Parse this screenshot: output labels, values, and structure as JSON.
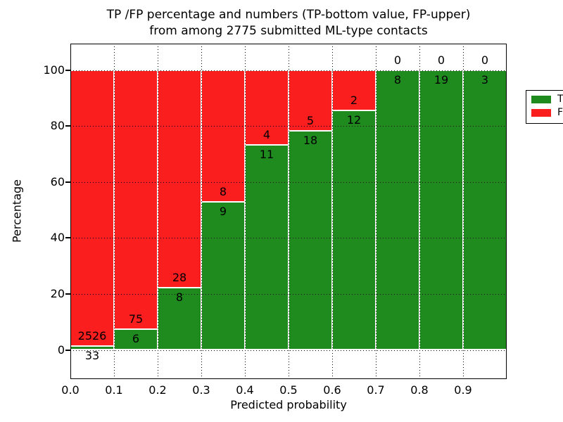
{
  "title": {
    "line1": "TP /FP percentage and numbers (TP-bottom value, FP-upper)",
    "line2": "from among 2775 submitted ML-type contacts"
  },
  "axes": {
    "xlabel": "Predicted probability",
    "ylabel": "Percentage",
    "x_tick_labels": [
      "0.0",
      "0.1",
      "0.2",
      "0.3",
      "0.4",
      "0.5",
      "0.6",
      "0.7",
      "0.8",
      "0.9"
    ],
    "y_tick_labels": [
      "0",
      "20",
      "40",
      "60",
      "80",
      "100"
    ],
    "y_tick_values": [
      0,
      20,
      40,
      60,
      80,
      100
    ],
    "xlim": [
      0.0,
      1.0
    ],
    "ylim": [
      -10.5,
      109.5
    ],
    "grid_style": "dotted"
  },
  "legend": {
    "position": "upper-right",
    "entries": [
      {
        "label": "TP",
        "color": "#1f8b1f"
      },
      {
        "label": "FP",
        "color": "#fa1e1e"
      }
    ]
  },
  "chart_data": {
    "type": "bar",
    "stacked": true,
    "normalized_to_percent": true,
    "title": "TP /FP percentage and numbers (TP-bottom value, FP-upper) from among 2775 submitted ML-type contacts",
    "xlabel": "Predicted probability",
    "ylabel": "Percentage",
    "total_contacts": 2775,
    "bin_edges": [
      0.0,
      0.1,
      0.2,
      0.3,
      0.4,
      0.5,
      0.6,
      0.7,
      0.8,
      0.9,
      1.0
    ],
    "series": [
      {
        "name": "TP",
        "color": "#1f8b1f",
        "counts": [
          33,
          6,
          8,
          9,
          11,
          18,
          12,
          8,
          19,
          3
        ],
        "percent": [
          1.3,
          7.4,
          22.2,
          52.9,
          73.3,
          78.3,
          85.7,
          100.0,
          100.0,
          100.0
        ]
      },
      {
        "name": "FP",
        "color": "#fa1e1e",
        "counts": [
          2526,
          75,
          28,
          8,
          4,
          5,
          2,
          0,
          0,
          0
        ],
        "percent": [
          98.7,
          92.6,
          77.8,
          47.1,
          26.7,
          21.7,
          14.3,
          0.0,
          0.0,
          0.0
        ]
      }
    ],
    "annotation_note": "TP count printed just below the green segment top edge, FP count just above it",
    "legend_position": "upper right",
    "grid": "dotted both axes"
  }
}
